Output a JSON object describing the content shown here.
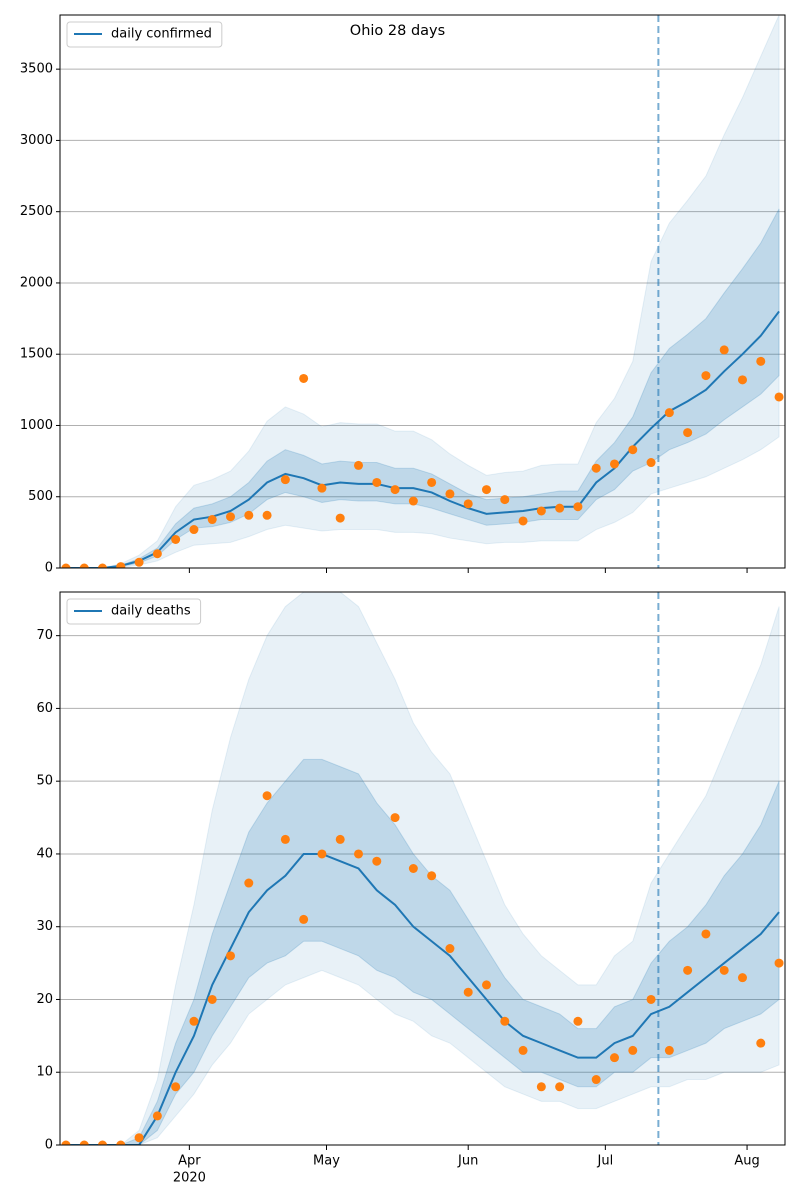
{
  "chart_data": [
    {
      "type": "line",
      "title": "Ohio 28 days",
      "legend": "upper left",
      "grid": true,
      "xlim": [
        2.7,
        161.3
      ],
      "xticks": [
        31,
        61,
        92,
        122,
        153
      ],
      "ylim": [
        0,
        3880
      ],
      "yticks": [
        0,
        500,
        1000,
        1500,
        2000,
        2500,
        3000,
        3500
      ],
      "vline_x": 133.6,
      "x": [
        4,
        8,
        12,
        16,
        20,
        24,
        28,
        32,
        36,
        40,
        44,
        48,
        52,
        56,
        60,
        64,
        68,
        72,
        76,
        80,
        84,
        88,
        92,
        96,
        100,
        104,
        108,
        112,
        116,
        120,
        124,
        128,
        132,
        136,
        140,
        144,
        148,
        152,
        156,
        160
      ],
      "series": [
        {
          "name": "daily confirmed",
          "color": "#1f77b4",
          "values": [
            0,
            0,
            0,
            15,
            50,
            110,
            250,
            340,
            360,
            400,
            480,
            600,
            660,
            630,
            580,
            600,
            590,
            590,
            560,
            560,
            530,
            470,
            420,
            380,
            390,
            400,
            420,
            430,
            430,
            600,
            700,
            850,
            980,
            1100,
            1170,
            1250,
            1380,
            1500,
            1630,
            1800
          ]
        }
      ],
      "points": {
        "color": "#ff7f0e",
        "values": [
          0,
          0,
          0,
          10,
          40,
          100,
          200,
          270,
          340,
          360,
          370,
          370,
          620,
          1330,
          560,
          350,
          720,
          600,
          550,
          470,
          600,
          520,
          450,
          550,
          480,
          330,
          400,
          420,
          430,
          700,
          730,
          830,
          740,
          1090,
          950,
          1350,
          1530,
          1320,
          1450,
          1200
        ]
      },
      "bands": [
        {
          "color": "#1f77b4",
          "opacity": 0.1,
          "lower": [
            0,
            0,
            0,
            5,
            20,
            50,
            110,
            160,
            170,
            180,
            220,
            270,
            300,
            280,
            260,
            270,
            270,
            270,
            250,
            250,
            240,
            210,
            190,
            170,
            180,
            180,
            190,
            190,
            190,
            270,
            320,
            390,
            520,
            560,
            600,
            640,
            700,
            760,
            830,
            920
          ],
          "upper": [
            0,
            0,
            0,
            30,
            90,
            190,
            430,
            580,
            620,
            680,
            820,
            1030,
            1130,
            1080,
            990,
            1020,
            1010,
            1010,
            960,
            960,
            900,
            800,
            720,
            650,
            670,
            680,
            720,
            730,
            730,
            1020,
            1190,
            1450,
            2150,
            2420,
            2580,
            2750,
            3040,
            3300,
            3590,
            3880
          ]
        },
        {
          "color": "#1f77b4",
          "opacity": 0.2,
          "lower": [
            0,
            0,
            0,
            10,
            35,
            85,
            200,
            280,
            290,
            320,
            380,
            480,
            530,
            500,
            460,
            480,
            470,
            470,
            450,
            450,
            420,
            380,
            340,
            300,
            310,
            320,
            340,
            340,
            340,
            480,
            550,
            680,
            740,
            830,
            880,
            940,
            1040,
            1130,
            1220,
            1350
          ],
          "upper": [
            0,
            0,
            0,
            20,
            65,
            140,
            310,
            420,
            450,
            500,
            600,
            750,
            830,
            790,
            730,
            750,
            740,
            740,
            700,
            700,
            660,
            590,
            520,
            480,
            490,
            500,
            520,
            540,
            540,
            750,
            880,
            1060,
            1370,
            1540,
            1640,
            1750,
            1930,
            2100,
            2280,
            2520
          ]
        }
      ]
    },
    {
      "type": "line",
      "legend": "upper left",
      "grid": true,
      "xlim": [
        2.7,
        161.3
      ],
      "xticks": [
        {
          "value": 31,
          "label": "Apr"
        },
        {
          "value": 61,
          "label": "May"
        },
        {
          "value": 92,
          "label": "Jun"
        },
        {
          "value": 122,
          "label": "Jul"
        },
        {
          "value": 153,
          "label": "Aug"
        }
      ],
      "year": "2020",
      "ylim": [
        0,
        76
      ],
      "yticks": [
        0,
        10,
        20,
        30,
        40,
        50,
        60,
        70
      ],
      "vline_x": 133.6,
      "x": [
        4,
        8,
        12,
        16,
        20,
        24,
        28,
        32,
        36,
        40,
        44,
        48,
        52,
        56,
        60,
        64,
        68,
        72,
        76,
        80,
        84,
        88,
        92,
        96,
        100,
        104,
        108,
        112,
        116,
        120,
        124,
        128,
        132,
        136,
        140,
        144,
        148,
        152,
        156,
        160
      ],
      "series": [
        {
          "name": "daily deaths",
          "color": "#1f77b4",
          "values": [
            0,
            0,
            0,
            0,
            0,
            4,
            10,
            15,
            22,
            27,
            32,
            35,
            37,
            40,
            40,
            39,
            38,
            35,
            33,
            30,
            28,
            26,
            23,
            20,
            17,
            15,
            14,
            13,
            12,
            12,
            14,
            15,
            18,
            19,
            21,
            23,
            25,
            27,
            29,
            32
          ]
        }
      ],
      "points": {
        "color": "#ff7f0e",
        "values": [
          0,
          0,
          0,
          0,
          1,
          4,
          8,
          17,
          20,
          26,
          36,
          48,
          42,
          31,
          40,
          42,
          40,
          39,
          45,
          38,
          37,
          27,
          21,
          22,
          17,
          13,
          8,
          8,
          17,
          9,
          12,
          13,
          20,
          13,
          24,
          29,
          24,
          23,
          14,
          25
        ]
      },
      "bands": [
        {
          "color": "#1f77b4",
          "opacity": 0.1,
          "lower": [
            0,
            0,
            0,
            0,
            0,
            1,
            4,
            7,
            11,
            14,
            18,
            20,
            22,
            23,
            24,
            23,
            22,
            20,
            18,
            17,
            15,
            14,
            12,
            10,
            8,
            7,
            6,
            6,
            5,
            5,
            6,
            7,
            8,
            8,
            9,
            9,
            10,
            10,
            10,
            11
          ],
          "upper": [
            0,
            0,
            0,
            0,
            2,
            9,
            22,
            33,
            46,
            56,
            64,
            70,
            74,
            76,
            76,
            76,
            74,
            69,
            64,
            58,
            54,
            51,
            45,
            39,
            33,
            29,
            26,
            24,
            22,
            22,
            26,
            28,
            36,
            40,
            44,
            48,
            54,
            60,
            66,
            74
          ]
        },
        {
          "color": "#1f77b4",
          "opacity": 0.2,
          "lower": [
            0,
            0,
            0,
            0,
            0,
            2,
            7,
            10,
            15,
            19,
            23,
            25,
            26,
            28,
            28,
            27,
            26,
            24,
            23,
            21,
            20,
            18,
            16,
            14,
            12,
            10,
            10,
            9,
            8,
            8,
            10,
            10,
            12,
            12,
            13,
            14,
            16,
            17,
            18,
            20
          ],
          "upper": [
            0,
            0,
            0,
            0,
            1,
            6,
            14,
            20,
            29,
            36,
            43,
            47,
            50,
            53,
            53,
            52,
            51,
            47,
            44,
            40,
            37,
            35,
            31,
            27,
            23,
            20,
            19,
            18,
            16,
            16,
            19,
            20,
            25,
            28,
            30,
            33,
            37,
            40,
            44,
            50
          ]
        }
      ]
    }
  ]
}
